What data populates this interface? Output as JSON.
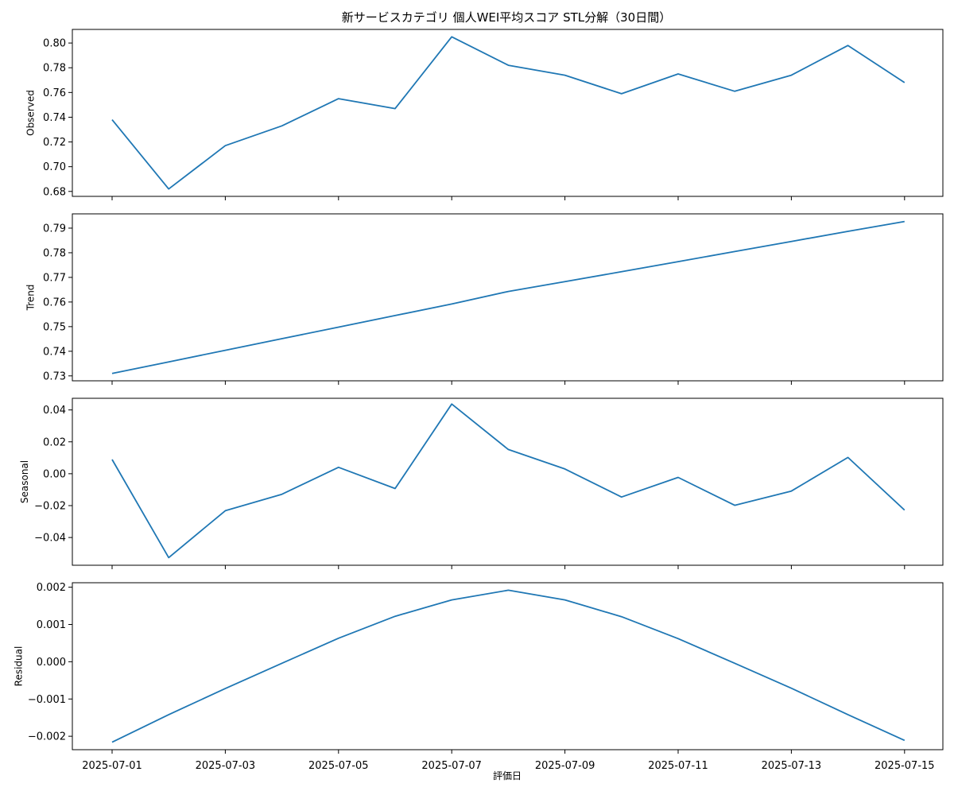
{
  "figure": {
    "title": "新サービスカテゴリ 個人WEI平均スコア STL分解（30日間）",
    "xlabel": "評価日",
    "x_tick_labels": [
      "2025-07-01",
      "2025-07-03",
      "2025-07-05",
      "2025-07-07",
      "2025-07-09",
      "2025-07-11",
      "2025-07-13",
      "2025-07-15"
    ],
    "line_color": "#1f77b4"
  },
  "chart_data": [
    {
      "type": "line",
      "ylabel": "Observed",
      "x": [
        "2025-07-01",
        "2025-07-02",
        "2025-07-03",
        "2025-07-04",
        "2025-07-05",
        "2025-07-06",
        "2025-07-07",
        "2025-07-08",
        "2025-07-09",
        "2025-07-10",
        "2025-07-11",
        "2025-07-12",
        "2025-07-13",
        "2025-07-14",
        "2025-07-15"
      ],
      "values": [
        0.738,
        0.682,
        0.717,
        0.733,
        0.755,
        0.747,
        0.805,
        0.782,
        0.774,
        0.759,
        0.775,
        0.761,
        0.774,
        0.798,
        0.768
      ],
      "ylim": [
        0.676,
        0.811
      ],
      "y_ticks": [
        0.68,
        0.7,
        0.72,
        0.74,
        0.76,
        0.78,
        0.8
      ],
      "y_tick_labels": [
        "0.68",
        "0.70",
        "0.72",
        "0.74",
        "0.76",
        "0.78",
        "0.80"
      ]
    },
    {
      "type": "line",
      "ylabel": "Trend",
      "x": [
        "2025-07-01",
        "2025-07-02",
        "2025-07-03",
        "2025-07-04",
        "2025-07-05",
        "2025-07-06",
        "2025-07-07",
        "2025-07-08",
        "2025-07-09",
        "2025-07-10",
        "2025-07-11",
        "2025-07-12",
        "2025-07-13",
        "2025-07-14",
        "2025-07-15"
      ],
      "values": [
        0.731,
        0.7357,
        0.7404,
        0.7451,
        0.7498,
        0.7545,
        0.7592,
        0.7643,
        0.7683,
        0.7723,
        0.7764,
        0.7805,
        0.7846,
        0.7887,
        0.7927
      ],
      "ylim": [
        0.728,
        0.7958
      ],
      "y_ticks": [
        0.73,
        0.74,
        0.75,
        0.76,
        0.77,
        0.78,
        0.79
      ],
      "y_tick_labels": [
        "0.73",
        "0.74",
        "0.75",
        "0.76",
        "0.77",
        "0.78",
        "0.79"
      ]
    },
    {
      "type": "line",
      "ylabel": "Seasonal",
      "x": [
        "2025-07-01",
        "2025-07-02",
        "2025-07-03",
        "2025-07-04",
        "2025-07-05",
        "2025-07-06",
        "2025-07-07",
        "2025-07-08",
        "2025-07-09",
        "2025-07-10",
        "2025-07-11",
        "2025-07-12",
        "2025-07-13",
        "2025-07-14",
        "2025-07-15"
      ],
      "values": [
        0.0089,
        -0.0526,
        -0.0232,
        -0.0129,
        0.004,
        -0.0093,
        0.0437,
        0.0152,
        0.003,
        -0.0146,
        -0.0023,
        -0.0198,
        -0.0109,
        0.0102,
        -0.0228
      ],
      "ylim": [
        -0.0574,
        0.0473
      ],
      "y_ticks": [
        -0.04,
        -0.02,
        0.0,
        0.02,
        0.04
      ],
      "y_tick_labels": [
        "−0.04",
        "−0.02",
        "0.00",
        "0.02",
        "0.04"
      ]
    },
    {
      "type": "line",
      "ylabel": "Residual",
      "x": [
        "2025-07-01",
        "2025-07-02",
        "2025-07-03",
        "2025-07-04",
        "2025-07-05",
        "2025-07-06",
        "2025-07-07",
        "2025-07-08",
        "2025-07-09",
        "2025-07-10",
        "2025-07-11",
        "2025-07-12",
        "2025-07-13",
        "2025-07-14",
        "2025-07-15"
      ],
      "values": [
        -0.00216,
        -0.00142,
        -0.00072,
        -4e-05,
        0.00063,
        0.00122,
        0.00166,
        0.00192,
        0.00166,
        0.00121,
        0.00062,
        -4e-05,
        -0.00071,
        -0.00142,
        -0.00211
      ],
      "ylim": [
        -0.00236,
        0.00212
      ],
      "y_ticks": [
        -0.002,
        -0.001,
        0.0,
        0.001,
        0.002
      ],
      "y_tick_labels": [
        "−0.002",
        "−0.001",
        "0.000",
        "0.001",
        "0.002"
      ]
    }
  ]
}
